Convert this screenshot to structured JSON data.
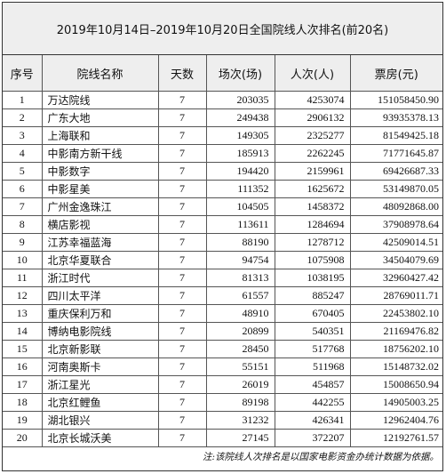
{
  "title": "2019年10月14日–2019年10月20日全国院线人次排名(前20名)",
  "columns": {
    "rank": "序号",
    "name": "院线名称",
    "days": "天数",
    "screenings": "场次(场)",
    "admissions": "人次(人)",
    "box_office": "票房(元)"
  },
  "rows": [
    {
      "rank": "1",
      "name": "万达院线",
      "days": "7",
      "screenings": "203035",
      "admissions": "4253074",
      "box_office": "151058450.90"
    },
    {
      "rank": "2",
      "name": "广东大地",
      "days": "7",
      "screenings": "249438",
      "admissions": "2906132",
      "box_office": "93935378.13"
    },
    {
      "rank": "3",
      "name": "上海联和",
      "days": "7",
      "screenings": "149305",
      "admissions": "2325277",
      "box_office": "81549425.18"
    },
    {
      "rank": "4",
      "name": "中影南方新干线",
      "days": "7",
      "screenings": "185913",
      "admissions": "2262245",
      "box_office": "71771645.87"
    },
    {
      "rank": "5",
      "name": "中影数字",
      "days": "7",
      "screenings": "194420",
      "admissions": "2159961",
      "box_office": "69426687.33"
    },
    {
      "rank": "6",
      "name": "中影星美",
      "days": "7",
      "screenings": "111352",
      "admissions": "1625672",
      "box_office": "53149870.05"
    },
    {
      "rank": "7",
      "name": "广州金逸珠江",
      "days": "7",
      "screenings": "104505",
      "admissions": "1458372",
      "box_office": "48092868.00"
    },
    {
      "rank": "8",
      "name": "横店影视",
      "days": "7",
      "screenings": "113611",
      "admissions": "1284694",
      "box_office": "37908978.64"
    },
    {
      "rank": "9",
      "name": "江苏幸福蓝海",
      "days": "7",
      "screenings": "88190",
      "admissions": "1278712",
      "box_office": "42509014.51"
    },
    {
      "rank": "10",
      "name": "北京华夏联合",
      "days": "7",
      "screenings": "94754",
      "admissions": "1075908",
      "box_office": "34504079.69"
    },
    {
      "rank": "11",
      "name": "浙江时代",
      "days": "7",
      "screenings": "81313",
      "admissions": "1038195",
      "box_office": "32960427.42"
    },
    {
      "rank": "12",
      "name": "四川太平洋",
      "days": "7",
      "screenings": "61557",
      "admissions": "885247",
      "box_office": "28769011.71"
    },
    {
      "rank": "13",
      "name": "重庆保利万和",
      "days": "7",
      "screenings": "48910",
      "admissions": "670405",
      "box_office": "22453802.10"
    },
    {
      "rank": "14",
      "name": "博纳电影院线",
      "days": "7",
      "screenings": "20899",
      "admissions": "540351",
      "box_office": "21169476.82"
    },
    {
      "rank": "15",
      "name": "北京新影联",
      "days": "7",
      "screenings": "28450",
      "admissions": "517768",
      "box_office": "18756202.10"
    },
    {
      "rank": "16",
      "name": "河南奥斯卡",
      "days": "7",
      "screenings": "55151",
      "admissions": "511968",
      "box_office": "15148732.02"
    },
    {
      "rank": "17",
      "name": "浙江星光",
      "days": "7",
      "screenings": "26019",
      "admissions": "454857",
      "box_office": "15008650.94"
    },
    {
      "rank": "18",
      "name": "北京红鲤鱼",
      "days": "7",
      "screenings": "89198",
      "admissions": "442255",
      "box_office": "14905003.25"
    },
    {
      "rank": "19",
      "name": "湖北银兴",
      "days": "7",
      "screenings": "31232",
      "admissions": "426341",
      "box_office": "12962404.76"
    },
    {
      "rank": "20",
      "name": "北京长城沃美",
      "days": "7",
      "screenings": "27145",
      "admissions": "372207",
      "box_office": "12192761.57"
    }
  ],
  "footnote": "注:该院线人次排名是以国家电影资金办统计数据为依据。"
}
